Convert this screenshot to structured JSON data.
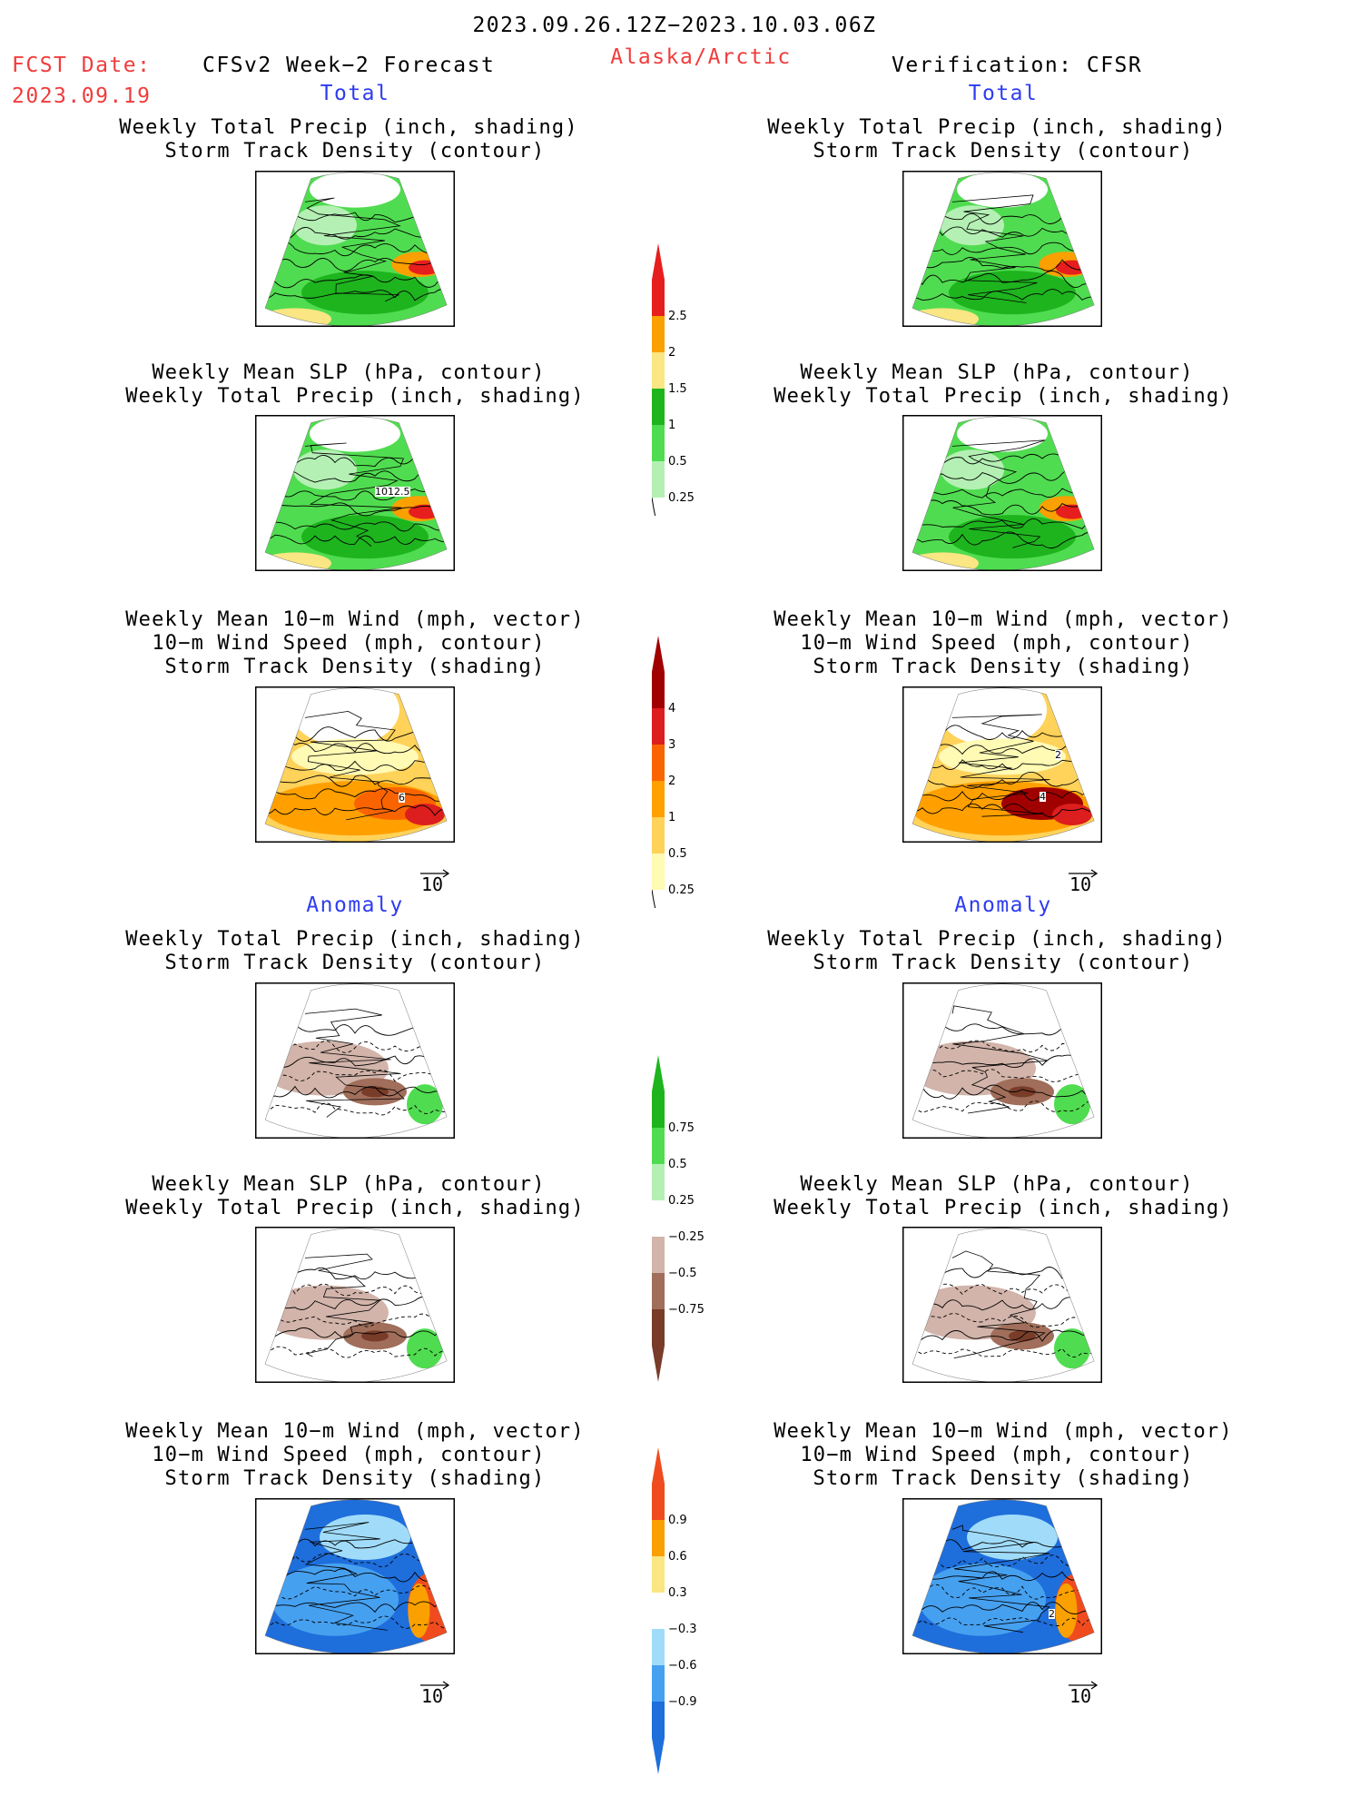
{
  "header": {
    "period": "2023.09.26.12Z−2023.10.03.06Z",
    "fcst_label": "FCST Date:",
    "fcst_date": "2023.09.19",
    "model": "CFSv2 Week−2 Forecast",
    "region": "Alaska/Arctic",
    "verification": "Verification: CFSR"
  },
  "sections": {
    "total_left": "Total",
    "total_right": "Total",
    "anomaly_left": "Anomaly",
    "anomaly_right": "Anomaly"
  },
  "titles": {
    "precip_storm_1": "Weekly Total Precip (inch, shading)",
    "precip_storm_2": "Storm Track Density (contour)",
    "slp_precip_1": "Weekly Mean SLP (hPa, contour)",
    "slp_precip_2": "Weekly Total Precip (inch, shading)",
    "wind_1": "Weekly Mean 10−m Wind (mph, vector)",
    "wind_2": "10−m Wind Speed (mph, contour)",
    "wind_3": "Storm Track Density (shading)"
  },
  "map_labels": {
    "slp_fcst_contour": "1012.5",
    "wind_fcst_contour": "6",
    "wind_cfsr_contour_a": "4",
    "wind_cfsr_contour_b": "2",
    "wind_anom_cfsr_contour": "2"
  },
  "reference_vector": "10",
  "colors": {
    "red_text": "#f03c3c",
    "blue_text": "#2d3cf0",
    "precip_total": [
      "#b4f0b4",
      "#50dc50",
      "#1eb41e",
      "#fae682",
      "#faa000",
      "#e61e1e"
    ],
    "storm_total": [
      "#fffab4",
      "#ffd25a",
      "#ffa000",
      "#fa6400",
      "#dc1e1e",
      "#a00000"
    ],
    "precip_anom": [
      "#783c28",
      "#a06e5a",
      "#d2b4aa",
      "#ffffff",
      "#b4f0b4",
      "#50dc50",
      "#1eb41e"
    ],
    "storm_anom": [
      "#1e6edc",
      "#46a0f0",
      "#a0dcfa",
      "#ffffff",
      "#fae682",
      "#faa000",
      "#f04b1e"
    ]
  },
  "colorbars": [
    {
      "name": "precip-total",
      "ticks": [
        "0.25",
        "0.5",
        "1",
        "1.5",
        "2",
        "2.5"
      ]
    },
    {
      "name": "storm-density-total",
      "ticks": [
        "0.25",
        "0.5",
        "1",
        "2",
        "3",
        "4"
      ]
    },
    {
      "name": "precip-anomaly",
      "ticks": [
        "−0.75",
        "−0.5",
        "−0.25",
        "0.25",
        "0.5",
        "0.75"
      ]
    },
    {
      "name": "storm-density-anomaly",
      "ticks": [
        "−0.9",
        "−0.6",
        "−0.3",
        "0.3",
        "0.6",
        "0.9"
      ]
    }
  ]
}
